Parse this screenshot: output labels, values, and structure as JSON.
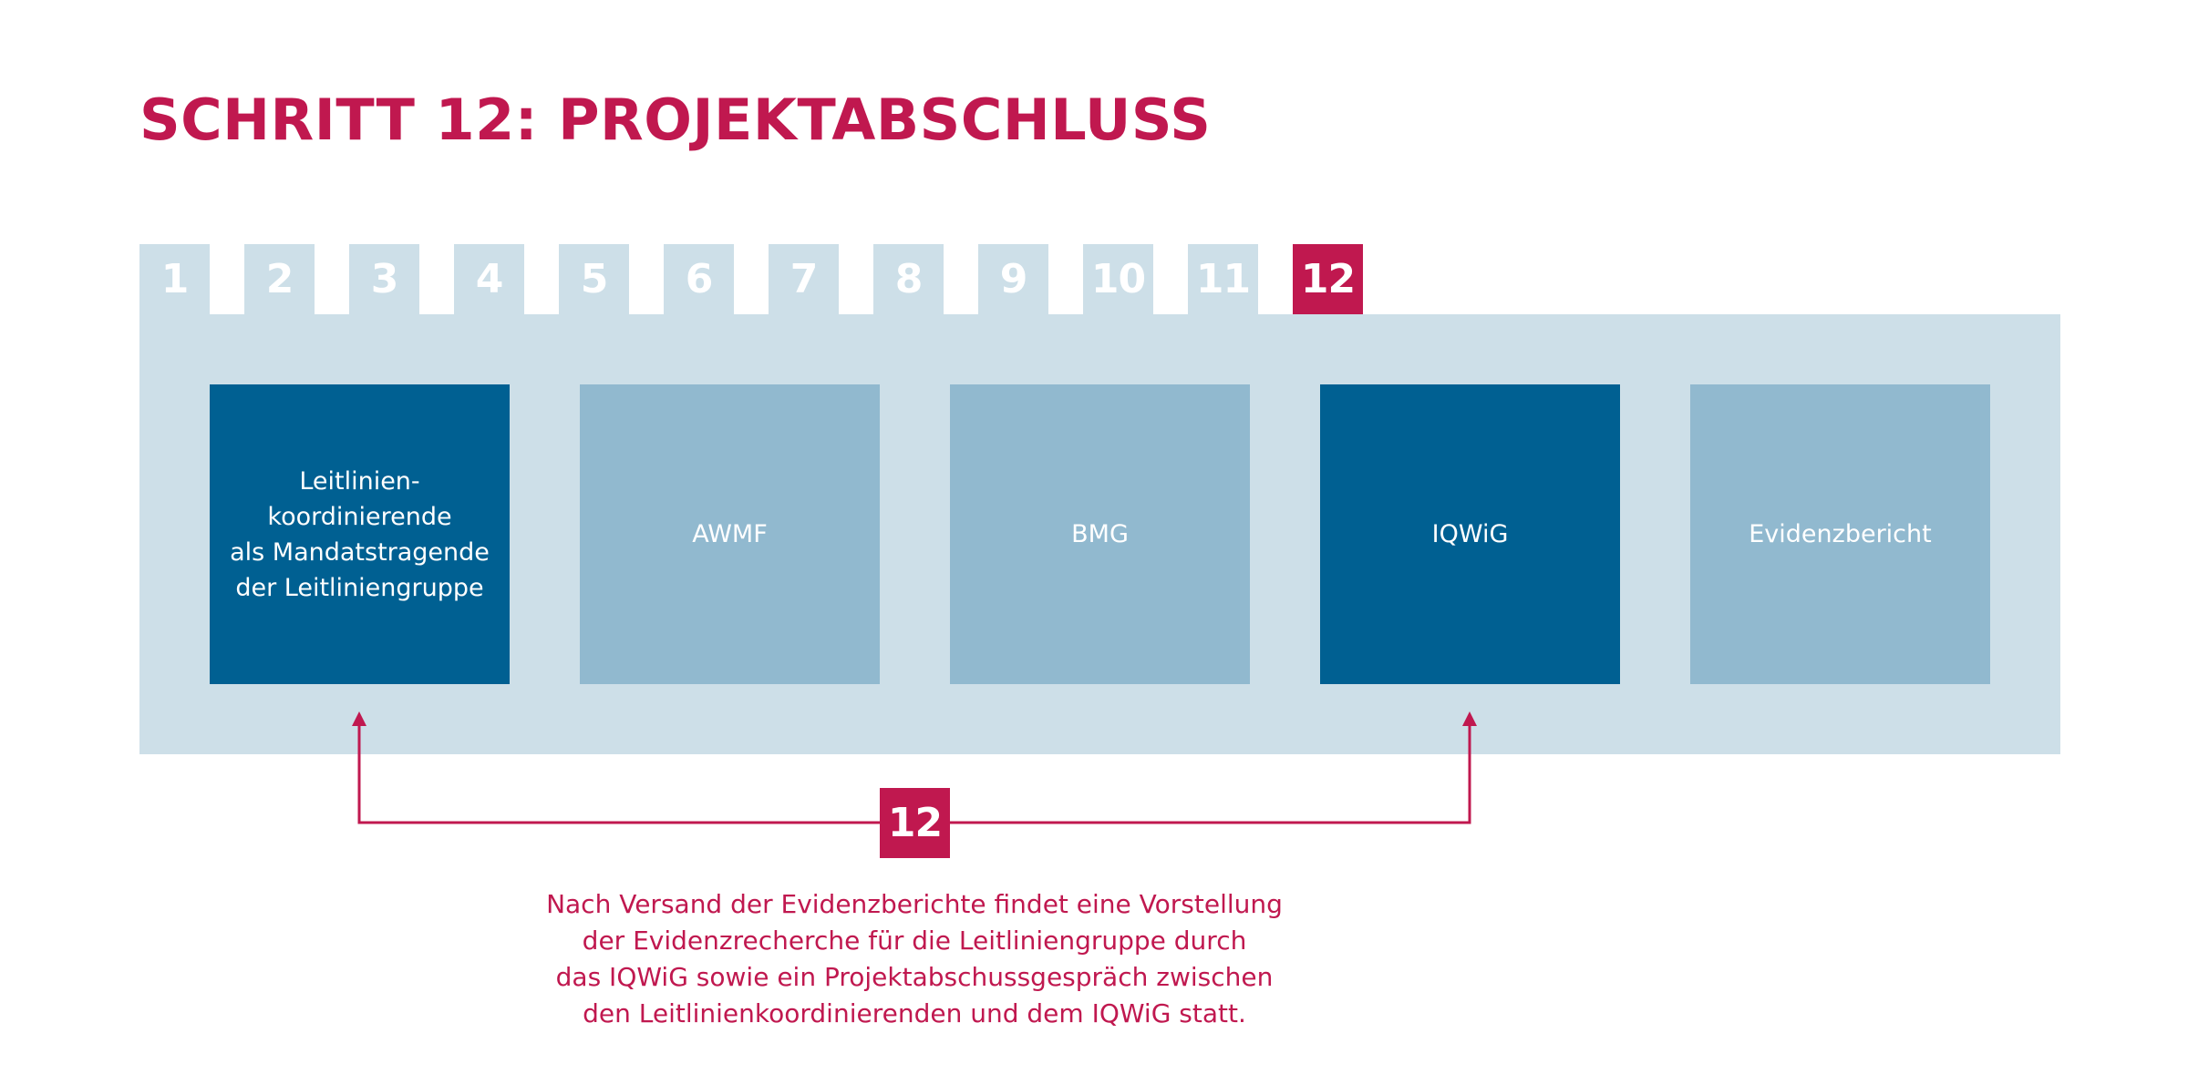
{
  "title": "SCHRITT 12: PROJEKTABSCHLUSS",
  "steps": {
    "items": [
      "1",
      "2",
      "3",
      "4",
      "5",
      "6",
      "7",
      "8",
      "9",
      "10",
      "11",
      "12"
    ],
    "active": "12"
  },
  "boxes": [
    {
      "lines": [
        "Leitlinien-",
        "koordinierende",
        "als Mandatstragende",
        "der Leitliniengruppe"
      ],
      "tone": "dark"
    },
    {
      "lines": [
        "AWMF"
      ],
      "tone": "light"
    },
    {
      "lines": [
        "BMG"
      ],
      "tone": "light"
    },
    {
      "lines": [
        "IQWiG"
      ],
      "tone": "dark"
    },
    {
      "lines": [
        "Evidenzbericht"
      ],
      "tone": "light"
    }
  ],
  "connector": {
    "label": "12",
    "from": "Leitlinien-koordinierende als Mandatstragende der Leitliniengruppe",
    "to": "IQWiG"
  },
  "description": {
    "lines": [
      "Nach Versand der Evidenzberichte findet eine Vorstellung",
      "der Evidenzrecherche für die Leitliniengruppe durch",
      "das IQWiG sowie ein Projektabschussgespräch zwischen",
      "den Leitlinienkoordinierenden und dem IQWiG statt."
    ]
  },
  "colors": {
    "accent": "#c0184f",
    "dark_box": "#006092",
    "light_box": "#91b9cf",
    "panel": "#cddfe8"
  }
}
